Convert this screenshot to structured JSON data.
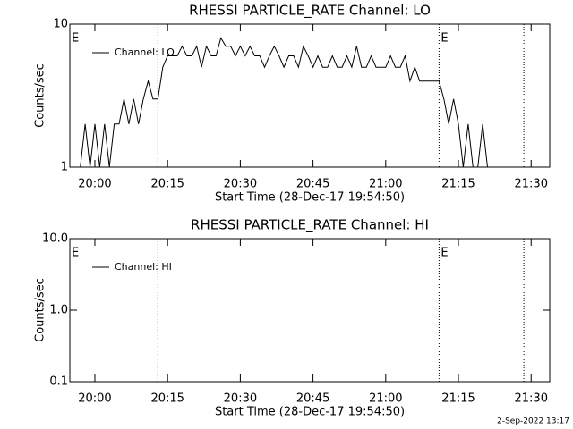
{
  "footer": "2-Sep-2022 13:17",
  "chart_data": [
    {
      "type": "line",
      "title": "RHESSI PARTICLE_RATE Channel: LO",
      "xlabel": "Start Time (28-Dec-17 19:54:50)",
      "ylabel": "Counts/sec",
      "log_y": true,
      "ylim": [
        1,
        10
      ],
      "yticks": [
        1,
        10
      ],
      "xlim": [
        "19:54:50",
        "21:33:50"
      ],
      "xticks": [
        "20:00",
        "20:15",
        "20:30",
        "20:45",
        "21:00",
        "21:15",
        "21:30"
      ],
      "vlines": [
        "20:13",
        "21:11",
        "21:28:30"
      ],
      "annotations": [
        {
          "text": "E",
          "x": "19:54:50"
        },
        {
          "text": "E",
          "x": "21:11"
        }
      ],
      "x": [
        "19:57",
        "19:58",
        "19:59",
        "20:00",
        "20:01",
        "20:02",
        "20:03",
        "20:04",
        "20:05",
        "20:06",
        "20:07",
        "20:08",
        "20:09",
        "20:10",
        "20:11",
        "20:12",
        "20:13",
        "20:14",
        "20:15",
        "20:16",
        "20:17",
        "20:18",
        "20:19",
        "20:20",
        "20:21",
        "20:22",
        "20:23",
        "20:24",
        "20:25",
        "20:26",
        "20:27",
        "20:28",
        "20:29",
        "20:30",
        "20:31",
        "20:32",
        "20:33",
        "20:34",
        "20:35",
        "20:36",
        "20:37",
        "20:38",
        "20:39",
        "20:40",
        "20:41",
        "20:42",
        "20:43",
        "20:44",
        "20:45",
        "20:46",
        "20:47",
        "20:48",
        "20:49",
        "20:50",
        "20:51",
        "20:52",
        "20:53",
        "20:54",
        "20:55",
        "20:56",
        "20:57",
        "20:58",
        "20:59",
        "21:00",
        "21:01",
        "21:02",
        "21:03",
        "21:04",
        "21:05",
        "21:06",
        "21:07",
        "21:08",
        "21:09",
        "21:10",
        "21:11",
        "21:12",
        "21:13",
        "21:14",
        "21:15",
        "21:16",
        "21:17",
        "21:18",
        "21:19",
        "21:20",
        "21:21"
      ],
      "series": [
        {
          "name": "Channel: LO",
          "color": "#000000",
          "values": [
            1,
            2,
            1,
            2,
            1,
            2,
            1,
            2,
            2,
            3,
            2,
            3,
            2,
            3,
            4,
            3,
            3,
            5,
            6,
            6,
            6,
            7,
            6,
            6,
            7,
            5,
            7,
            6,
            6,
            8,
            7,
            7,
            6,
            7,
            6,
            7,
            6,
            6,
            5,
            6,
            7,
            6,
            5,
            6,
            6,
            5,
            7,
            6,
            5,
            6,
            5,
            5,
            6,
            5,
            5,
            6,
            5,
            7,
            5,
            5,
            6,
            5,
            5,
            5,
            6,
            5,
            5,
            6,
            4,
            5,
            4,
            4,
            4,
            4,
            4,
            3,
            2,
            3,
            2,
            1,
            2,
            1,
            1,
            2,
            1
          ]
        }
      ]
    },
    {
      "type": "line",
      "title": "RHESSI PARTICLE_RATE Channel: HI",
      "xlabel": "Start Time (28-Dec-17 19:54:50)",
      "ylabel": "Counts/sec",
      "log_y": true,
      "ylim": [
        0.1,
        10
      ],
      "yticks": [
        0.1,
        {
          "value": 1,
          "label": "1.0"
        },
        {
          "value": 10,
          "label": "10.0"
        }
      ],
      "xlim": [
        "19:54:50",
        "21:33:50"
      ],
      "xticks": [
        "20:00",
        "20:15",
        "20:30",
        "20:45",
        "21:00",
        "21:15",
        "21:30"
      ],
      "vlines": [
        "20:13",
        "21:11",
        "21:28:30"
      ],
      "annotations": [
        {
          "text": "E",
          "x": "19:54:50"
        },
        {
          "text": "E",
          "x": "21:11"
        }
      ],
      "x": [],
      "series": [
        {
          "name": "Channel: HI",
          "color": "#000000",
          "values": []
        }
      ]
    }
  ]
}
